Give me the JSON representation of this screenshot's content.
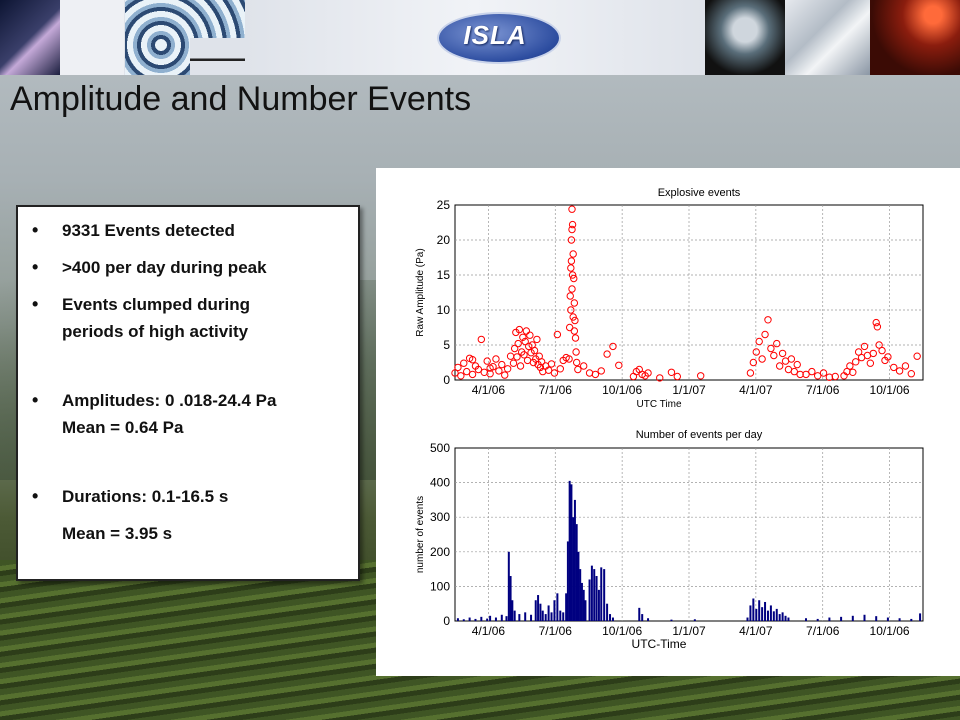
{
  "slide": {
    "title": "Amplitude and Number Events",
    "logo_text": "ISLA"
  },
  "bullets": [
    {
      "text": "9331 Events detected",
      "bullet": true
    },
    {
      "text": ">400 per day during peak",
      "bullet": true
    },
    {
      "text": "Events clumped during",
      "bullet": true
    },
    {
      "text": "periods of high activity",
      "bullet": false
    },
    {
      "text": "Amplitudes: 0 .018-24.4 Pa",
      "bullet": true
    },
    {
      "text": "Mean = 0.64 Pa",
      "bullet": false
    },
    {
      "text": "Durations: 0.1-16.5 s",
      "bullet": true
    },
    {
      "text": "Mean = 3.95 s",
      "bullet": false
    }
  ],
  "chart_data": [
    {
      "type": "scatter",
      "title": "Explosive events",
      "xlabel": "UTC Time",
      "ylabel": "Raw Amplitude (Pa)",
      "ylim": [
        0,
        25
      ],
      "yticks": [
        "0",
        "5",
        "10",
        "15",
        "20",
        "25"
      ],
      "xticks": [
        "4/1/06",
        "7/1/06",
        "10/1/06",
        "1/1/07",
        "4/1/07",
        "7/1/06",
        "10/1/06"
      ],
      "grid": true,
      "color": "#ff0000",
      "series": [
        {
          "points": [
            [
              0.0,
              1.0
            ],
            [
              0.05,
              1.8
            ],
            [
              0.1,
              0.6
            ],
            [
              0.15,
              2.4
            ],
            [
              0.2,
              1.2
            ],
            [
              0.25,
              3.1
            ],
            [
              0.3,
              0.8
            ],
            [
              0.35,
              2.0
            ],
            [
              0.4,
              1.5
            ],
            [
              0.45,
              5.8
            ],
            [
              0.5,
              1.1
            ],
            [
              0.55,
              2.7
            ],
            [
              0.6,
              0.9
            ],
            [
              0.65,
              1.9
            ],
            [
              0.7,
              3.0
            ],
            [
              0.75,
              1.3
            ],
            [
              0.8,
              2.2
            ],
            [
              0.85,
              0.7
            ],
            [
              0.9,
              1.6
            ],
            [
              0.95,
              3.4
            ],
            [
              0.6,
              1.7
            ],
            [
              0.3,
              2.9
            ],
            [
              1.0,
              2.4
            ],
            [
              1.02,
              4.5
            ],
            [
              1.04,
              6.8
            ],
            [
              1.06,
              3.3
            ],
            [
              1.08,
              5.2
            ],
            [
              1.1,
              7.2
            ],
            [
              1.12,
              2.0
            ],
            [
              1.14,
              4.0
            ],
            [
              1.16,
              6.1
            ],
            [
              1.18,
              3.6
            ],
            [
              1.2,
              5.5
            ],
            [
              1.22,
              7.0
            ],
            [
              1.24,
              2.8
            ],
            [
              1.26,
              4.8
            ],
            [
              1.28,
              6.4
            ],
            [
              1.3,
              3.9
            ],
            [
              1.32,
              5.0
            ],
            [
              1.34,
              2.5
            ],
            [
              1.36,
              4.2
            ],
            [
              1.38,
              3.0
            ],
            [
              1.4,
              5.8
            ],
            [
              1.42,
              2.2
            ],
            [
              1.44,
              3.4
            ],
            [
              1.46,
              1.8
            ],
            [
              1.48,
              2.6
            ],
            [
              1.5,
              1.2
            ],
            [
              1.55,
              2.0
            ],
            [
              1.6,
              1.4
            ],
            [
              1.65,
              2.3
            ],
            [
              1.7,
              1.0
            ],
            [
              1.75,
              6.5
            ],
            [
              1.8,
              1.6
            ],
            [
              1.85,
              2.8
            ],
            [
              1.9,
              3.2
            ],
            [
              1.95,
              3.0
            ],
            [
              1.96,
              7.5
            ],
            [
              1.97,
              12.0
            ],
            [
              1.98,
              16.0
            ],
            [
              1.99,
              20.0
            ],
            [
              2.0,
              24.4
            ],
            [
              2.01,
              22.2
            ],
            [
              2.02,
              18.0
            ],
            [
              2.03,
              14.5
            ],
            [
              2.04,
              11.0
            ],
            [
              2.05,
              8.5
            ],
            [
              2.06,
              6.0
            ],
            [
              2.07,
              4.0
            ],
            [
              2.08,
              2.5
            ],
            [
              1.98,
              10.0
            ],
            [
              2.0,
              13.0
            ],
            [
              2.02,
              9.0
            ],
            [
              2.04,
              7.0
            ],
            [
              2.0,
              21.5
            ],
            [
              1.99,
              17.0
            ],
            [
              2.01,
              15.0
            ],
            [
              2.1,
              1.5
            ],
            [
              2.2,
              2.0
            ],
            [
              2.3,
              1.0
            ],
            [
              2.4,
              0.8
            ],
            [
              2.5,
              1.3
            ],
            [
              2.6,
              3.7
            ],
            [
              2.7,
              4.8
            ],
            [
              2.8,
              2.1
            ],
            [
              3.05,
              0.5
            ],
            [
              3.1,
              1.2
            ],
            [
              3.15,
              1.5
            ],
            [
              3.2,
              0.8
            ],
            [
              3.25,
              0.6
            ],
            [
              3.3,
              1.0
            ],
            [
              3.5,
              0.3
            ],
            [
              3.7,
              1.1
            ],
            [
              3.8,
              0.5
            ],
            [
              4.2,
              0.6
            ],
            [
              5.05,
              1.0
            ],
            [
              5.1,
              2.5
            ],
            [
              5.15,
              4.0
            ],
            [
              5.2,
              5.5
            ],
            [
              5.25,
              3.0
            ],
            [
              5.3,
              6.5
            ],
            [
              5.35,
              8.6
            ],
            [
              5.4,
              4.5
            ],
            [
              5.45,
              3.5
            ],
            [
              5.5,
              5.2
            ],
            [
              5.55,
              2.0
            ],
            [
              5.6,
              3.8
            ],
            [
              5.65,
              2.7
            ],
            [
              5.7,
              1.5
            ],
            [
              5.75,
              3.0
            ],
            [
              5.8,
              1.2
            ],
            [
              5.85,
              2.2
            ],
            [
              5.9,
              0.8
            ],
            [
              6.0,
              0.8
            ],
            [
              6.1,
              1.2
            ],
            [
              6.2,
              0.6
            ],
            [
              6.3,
              1.0
            ],
            [
              6.4,
              0.4
            ],
            [
              6.5,
              0.5
            ],
            [
              6.65,
              0.6
            ],
            [
              6.7,
              1.2
            ],
            [
              6.75,
              2.0
            ],
            [
              6.8,
              1.1
            ],
            [
              6.85,
              2.6
            ],
            [
              6.9,
              4.0
            ],
            [
              6.95,
              3.2
            ],
            [
              7.0,
              4.8
            ],
            [
              7.05,
              3.5
            ],
            [
              7.1,
              2.4
            ],
            [
              7.15,
              3.8
            ],
            [
              7.2,
              8.2
            ],
            [
              7.22,
              7.6
            ],
            [
              7.25,
              5.0
            ],
            [
              7.3,
              4.2
            ],
            [
              7.35,
              2.8
            ],
            [
              7.4,
              3.3
            ],
            [
              7.5,
              1.8
            ],
            [
              7.6,
              1.3
            ],
            [
              7.7,
              2.0
            ],
            [
              7.8,
              0.9
            ],
            [
              7.9,
              3.4
            ]
          ]
        }
      ]
    },
    {
      "type": "bar",
      "title": "Number of events per day",
      "xlabel": "UTC-Time",
      "ylabel": "number of events",
      "ylim": [
        0,
        500
      ],
      "yticks": [
        "0",
        "100",
        "200",
        "300",
        "400",
        "500"
      ],
      "xticks": [
        "4/1/06",
        "7/1/06",
        "10/1/06",
        "1/1/07",
        "4/1/07",
        "7/1/06",
        "10/1/06"
      ],
      "grid": true,
      "color": "#000080",
      "bars": [
        [
          0.05,
          8
        ],
        [
          0.15,
          5
        ],
        [
          0.25,
          10
        ],
        [
          0.35,
          6
        ],
        [
          0.45,
          12
        ],
        [
          0.55,
          7
        ],
        [
          0.6,
          15
        ],
        [
          0.7,
          10
        ],
        [
          0.8,
          18
        ],
        [
          0.88,
          14
        ],
        [
          0.92,
          200
        ],
        [
          0.95,
          130
        ],
        [
          0.98,
          60
        ],
        [
          1.02,
          30
        ],
        [
          1.1,
          20
        ],
        [
          1.2,
          25
        ],
        [
          1.3,
          18
        ],
        [
          1.38,
          60
        ],
        [
          1.42,
          75
        ],
        [
          1.46,
          50
        ],
        [
          1.5,
          30
        ],
        [
          1.55,
          20
        ],
        [
          1.6,
          45
        ],
        [
          1.65,
          25
        ],
        [
          1.7,
          60
        ],
        [
          1.75,
          80
        ],
        [
          1.8,
          30
        ],
        [
          1.85,
          25
        ],
        [
          1.9,
          80
        ],
        [
          1.93,
          230
        ],
        [
          1.96,
          405
        ],
        [
          1.99,
          395
        ],
        [
          2.02,
          300
        ],
        [
          2.05,
          350
        ],
        [
          2.08,
          280
        ],
        [
          2.11,
          200
        ],
        [
          2.14,
          150
        ],
        [
          2.17,
          110
        ],
        [
          2.2,
          90
        ],
        [
          2.23,
          60
        ],
        [
          2.3,
          120
        ],
        [
          2.34,
          160
        ],
        [
          2.38,
          150
        ],
        [
          2.42,
          130
        ],
        [
          2.46,
          90
        ],
        [
          2.5,
          155
        ],
        [
          2.55,
          150
        ],
        [
          2.6,
          50
        ],
        [
          2.65,
          20
        ],
        [
          2.7,
          10
        ],
        [
          3.15,
          38
        ],
        [
          3.2,
          20
        ],
        [
          3.3,
          8
        ],
        [
          3.7,
          4
        ],
        [
          4.1,
          5
        ],
        [
          5.0,
          10
        ],
        [
          5.05,
          45
        ],
        [
          5.1,
          65
        ],
        [
          5.15,
          35
        ],
        [
          5.2,
          60
        ],
        [
          5.25,
          40
        ],
        [
          5.3,
          55
        ],
        [
          5.35,
          30
        ],
        [
          5.4,
          45
        ],
        [
          5.45,
          28
        ],
        [
          5.5,
          35
        ],
        [
          5.55,
          20
        ],
        [
          5.6,
          25
        ],
        [
          5.65,
          15
        ],
        [
          5.7,
          10
        ],
        [
          6.0,
          8
        ],
        [
          6.2,
          6
        ],
        [
          6.4,
          10
        ],
        [
          6.6,
          12
        ],
        [
          6.8,
          15
        ],
        [
          7.0,
          18
        ],
        [
          7.2,
          14
        ],
        [
          7.4,
          10
        ],
        [
          7.6,
          8
        ],
        [
          7.8,
          6
        ],
        [
          7.95,
          22
        ]
      ]
    }
  ]
}
